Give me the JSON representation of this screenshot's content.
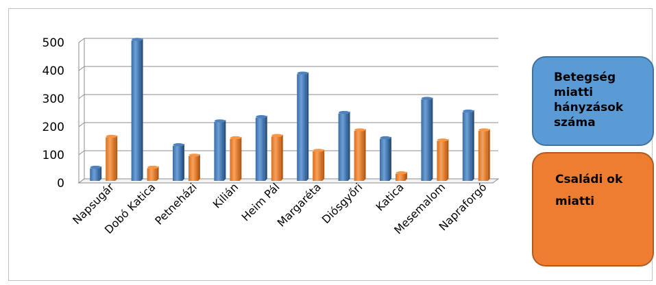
{
  "chart_data": {
    "type": "bar",
    "categories": [
      "Napsugár",
      "Dobó Katica",
      "Petneházi",
      "Kilián",
      "Heim Pál",
      "Margaréta",
      "Diósgyőri",
      "Katica",
      "Mesemalom",
      "Napraforgó"
    ],
    "series": [
      {
        "name": "Betegség miatti hányzások száma",
        "values": [
          45,
          500,
          125,
          210,
          225,
          380,
          240,
          150,
          290,
          245
        ]
      },
      {
        "name": "Családi ok miatti",
        "values": [
          155,
          45,
          88,
          150,
          158,
          105,
          178,
          25,
          142,
          178
        ]
      }
    ],
    "y_ticks": [
      "0",
      "100",
      "200",
      "300",
      "400",
      "500"
    ],
    "ylim": [
      0,
      500
    ],
    "grid": true,
    "legend_position": "right",
    "title": "",
    "xlabel": "",
    "ylabel": ""
  },
  "colors": {
    "series1": "#4f81bd",
    "series2": "#f79646"
  },
  "legend": {
    "series1_label": "Betegség miatti hányzások száma",
    "series2_line1": "Családi ok",
    "series2_line2": "miatti"
  }
}
